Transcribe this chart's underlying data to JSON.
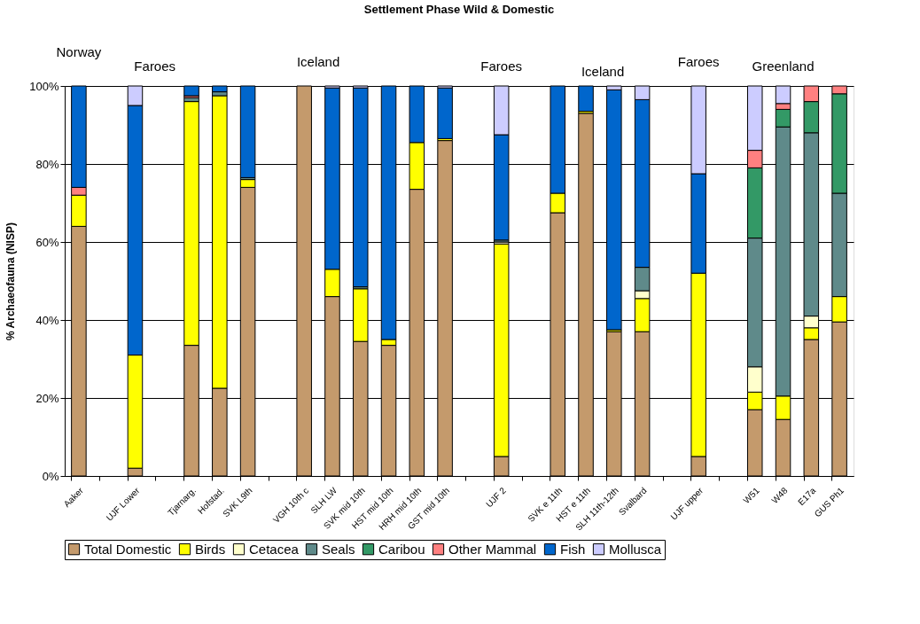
{
  "chart_data": {
    "type": "bar",
    "stacked": true,
    "title": "Settlement Phase Wild & Domestic",
    "ylabel": "% Archaeofauna (NISP)",
    "categories": [
      "Aaker",
      null,
      "UJF Lower",
      null,
      "Tjarnarg.",
      "Hofstad.",
      "SVK L9th",
      null,
      "VGH 10th c",
      "SLH LW",
      "SVK mid 10th",
      "HST mid 10th",
      "HRH mid 10th",
      "GST mid 10th",
      null,
      "UJF 2",
      null,
      "SVK e 11th",
      "HST e 11th",
      "SLH 11th-12th",
      "Svalbard",
      null,
      "UJF upper",
      null,
      "W51",
      "W48",
      "E17a",
      "GUS Ph1"
    ],
    "series": [
      {
        "name": "Total Domestic",
        "color": "#c49a6c",
        "values": [
          64,
          null,
          2,
          null,
          33.5,
          22.5,
          74,
          null,
          100,
          46,
          34.5,
          33.5,
          73.5,
          86,
          null,
          5,
          null,
          67.5,
          93,
          37,
          37,
          null,
          5,
          null,
          17,
          14.5,
          35,
          39.5
        ]
      },
      {
        "name": "Birds",
        "color": "#ffff00",
        "values": [
          8,
          null,
          29,
          null,
          62.5,
          75,
          2,
          null,
          null,
          7,
          13.5,
          1.5,
          12,
          0.5,
          null,
          54.5,
          null,
          5,
          0.5,
          0.5,
          8.5,
          null,
          47,
          null,
          4.5,
          6,
          3,
          6.5
        ]
      },
      {
        "name": "Cetacea",
        "color": "#ffffcc",
        "values": [
          null,
          null,
          null,
          null,
          null,
          null,
          null,
          null,
          null,
          null,
          null,
          null,
          null,
          null,
          null,
          0.5,
          null,
          null,
          null,
          null,
          2,
          null,
          null,
          null,
          6.5,
          null,
          3,
          null
        ]
      },
      {
        "name": "Seals",
        "color": "#5f8a8a",
        "values": [
          null,
          null,
          null,
          null,
          1,
          1,
          0.5,
          null,
          null,
          null,
          0.5,
          null,
          null,
          null,
          null,
          0.5,
          null,
          null,
          null,
          null,
          6,
          null,
          null,
          null,
          33,
          69,
          47,
          26.5
        ]
      },
      {
        "name": "Caribou",
        "color": "#339966",
        "values": [
          null,
          null,
          null,
          null,
          null,
          null,
          null,
          null,
          null,
          null,
          null,
          null,
          null,
          null,
          null,
          null,
          null,
          null,
          null,
          null,
          null,
          null,
          null,
          null,
          18,
          4.5,
          8,
          25.5
        ]
      },
      {
        "name": "Other Mammal",
        "color": "#ff8080",
        "values": [
          2,
          null,
          null,
          null,
          0.5,
          null,
          null,
          null,
          null,
          null,
          null,
          null,
          null,
          null,
          null,
          null,
          null,
          null,
          null,
          null,
          null,
          null,
          null,
          null,
          4.5,
          1.5,
          4,
          2
        ]
      },
      {
        "name": "Fish",
        "color": "#0066cc",
        "values": [
          26,
          null,
          64,
          null,
          2.5,
          1.5,
          23.5,
          null,
          null,
          46.5,
          51,
          65,
          14.5,
          13,
          null,
          27,
          null,
          27.5,
          6.5,
          61.5,
          43,
          null,
          25.5,
          null,
          null,
          null,
          null,
          null
        ]
      },
      {
        "name": "Mollusca",
        "color": "#ccccff",
        "values": [
          null,
          null,
          5,
          null,
          null,
          null,
          null,
          null,
          null,
          0.5,
          0.5,
          null,
          null,
          0.5,
          null,
          12.5,
          null,
          null,
          null,
          1,
          3.5,
          null,
          22.5,
          null,
          16.5,
          4.5,
          null,
          null
        ]
      }
    ],
    "ylim": [
      0,
      100
    ],
    "yticks": [
      {
        "value": 0,
        "label": "0%"
      },
      {
        "value": 20,
        "label": "20%"
      },
      {
        "value": 40,
        "label": "40%"
      },
      {
        "value": 60,
        "label": "60%"
      },
      {
        "value": 80,
        "label": "80%"
      },
      {
        "value": 100,
        "label": "100%"
      }
    ],
    "grid": "y",
    "legend": "bottom",
    "annotations": [
      "Norway",
      "Faroes",
      "Iceland",
      "Faroes",
      "Iceland",
      "Faroes",
      "Greenland"
    ]
  }
}
